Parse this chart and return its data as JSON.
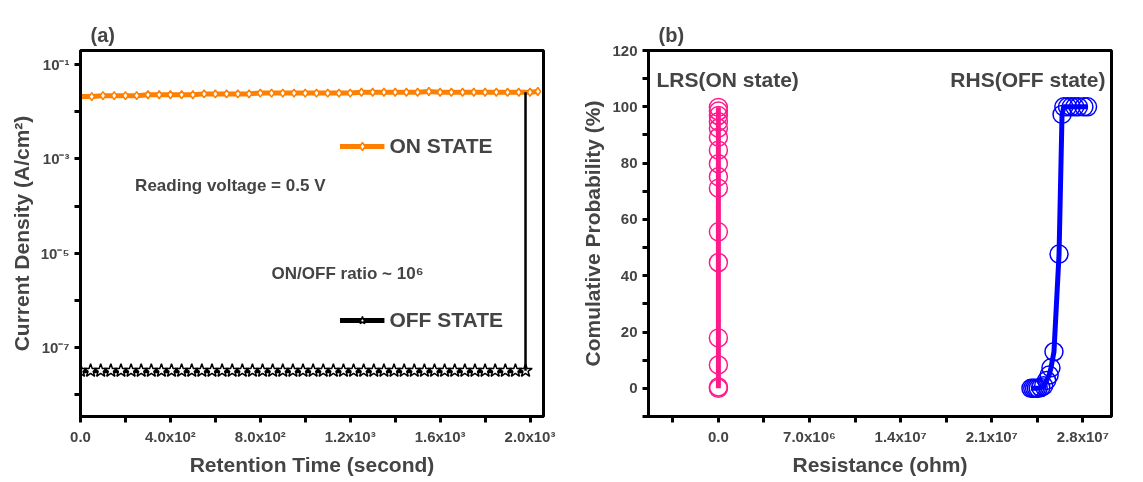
{
  "chart_data": [
    {
      "type": "line",
      "title": "(a)",
      "xlabel": "Retention Time (second)",
      "ylabel": "Current Density (A/cm²)",
      "log": "y",
      "legend": "right",
      "grid": false,
      "xlim": [
        0,
        2060
      ],
      "ylim": [
        3.4e-09,
        0.2
      ],
      "xticks": [
        {
          "value": 0,
          "label": "0.0"
        },
        {
          "value": 200,
          "label": null
        },
        {
          "value": 400,
          "label": "4.0x10²"
        },
        {
          "value": 600,
          "label": null
        },
        {
          "value": 800,
          "label": "8.0x10²"
        },
        {
          "value": 1000,
          "label": null
        },
        {
          "value": 1200,
          "label": "1.2x10³"
        },
        {
          "value": 1400,
          "label": null
        },
        {
          "value": 1600,
          "label": "1.6x10³"
        },
        {
          "value": 1800,
          "label": null
        },
        {
          "value": 2000,
          "label": "2.0x10³"
        }
      ],
      "yticks": [
        {
          "value": 1e-08,
          "label": null
        },
        {
          "value": 1e-07,
          "label": "10⁻⁷"
        },
        {
          "value": 1e-06,
          "label": null
        },
        {
          "value": 1e-05,
          "label": "10⁻⁵"
        },
        {
          "value": 0.0001,
          "label": null
        },
        {
          "value": 0.001,
          "label": "10⁻³"
        },
        {
          "value": 0.01,
          "label": null
        },
        {
          "value": 0.1,
          "label": "10⁻¹"
        }
      ],
      "annotations": [
        "Reading voltage =  0.5 V",
        "ON/OFF  ratio ~ 10⁶"
      ],
      "series": [
        {
          "name": "ON STATE",
          "color": "#ff7f00",
          "marker": "diamond",
          "x": [
            0,
            50,
            100,
            150,
            200,
            250,
            300,
            350,
            400,
            450,
            500,
            550,
            600,
            650,
            700,
            750,
            800,
            850,
            900,
            950,
            1000,
            1050,
            1100,
            1150,
            1200,
            1250,
            1300,
            1350,
            1400,
            1450,
            1500,
            1550,
            1600,
            1650,
            1700,
            1750,
            1800,
            1850,
            1900,
            1950,
            2000,
            2035
          ],
          "values": [
            0.021,
            0.021,
            0.022,
            0.022,
            0.022,
            0.022,
            0.023,
            0.023,
            0.023,
            0.023,
            0.023,
            0.024,
            0.024,
            0.024,
            0.024,
            0.024,
            0.025,
            0.025,
            0.025,
            0.025,
            0.025,
            0.025,
            0.025,
            0.025,
            0.025,
            0.026,
            0.026,
            0.026,
            0.026,
            0.026,
            0.026,
            0.027,
            0.026,
            0.026,
            0.026,
            0.026,
            0.026,
            0.026,
            0.026,
            0.026,
            0.026,
            0.027
          ]
        },
        {
          "name": "OFF STATE",
          "color": "#000000",
          "marker": "star",
          "x": [
            0,
            45,
            90,
            135,
            180,
            225,
            270,
            315,
            360,
            405,
            450,
            495,
            540,
            585,
            630,
            675,
            720,
            765,
            810,
            855,
            900,
            945,
            990,
            1035,
            1080,
            1125,
            1170,
            1215,
            1260,
            1305,
            1350,
            1395,
            1440,
            1485,
            1530,
            1575,
            1620,
            1665,
            1710,
            1755,
            1800,
            1845,
            1890,
            1935,
            1980
          ],
          "values": [
            3.2e-08,
            3.2e-08,
            3.2e-08,
            3.2e-08,
            3.2e-08,
            3.2e-08,
            3.2e-08,
            3.2e-08,
            3.2e-08,
            3.2e-08,
            3.2e-08,
            3.2e-08,
            3.2e-08,
            3.2e-08,
            3.2e-08,
            3.2e-08,
            3.2e-08,
            3.2e-08,
            3.2e-08,
            3.2e-08,
            3.2e-08,
            3.2e-08,
            3.2e-08,
            3.2e-08,
            3.2e-08,
            3.2e-08,
            3.2e-08,
            3.2e-08,
            3.2e-08,
            3.2e-08,
            3.2e-08,
            3.2e-08,
            3.2e-08,
            3.2e-08,
            3.2e-08,
            3.2e-08,
            3.2e-08,
            3.2e-08,
            3.2e-08,
            3.2e-08,
            3.2e-08,
            3.2e-08,
            3.2e-08,
            3.2e-08,
            3.2e-08
          ]
        },
        {
          "color": "#000000",
          "marker": "none",
          "x": [
            1980,
            1980
          ],
          "values": [
            3.2e-08,
            0.026
          ]
        }
      ]
    },
    {
      "type": "line",
      "title": "(b)",
      "xlabel": "Resistance (ohm)",
      "ylabel": "Comulative Probability (%)",
      "grid": false,
      "xlim": [
        -5370000.0,
        30200000.0
      ],
      "ylim": [
        -10,
        120
      ],
      "xticks": [
        {
          "value": -3500000.0,
          "label": null
        },
        {
          "value": 0,
          "label": "0.0"
        },
        {
          "value": 3500000.0,
          "label": null
        },
        {
          "value": 7000000.0,
          "label": "7.0x10⁶"
        },
        {
          "value": 10500000.0,
          "label": null
        },
        {
          "value": 14000000.0,
          "label": "1.4x10⁷"
        },
        {
          "value": 17500000.0,
          "label": null
        },
        {
          "value": 21000000.0,
          "label": "2.1x10⁷"
        },
        {
          "value": 24500000.0,
          "label": null
        },
        {
          "value": 28000000.0,
          "label": "2.8x10⁷"
        }
      ],
      "yticks": [
        {
          "value": -10,
          "label": null
        },
        0,
        {
          "value": 10,
          "label": null
        },
        20,
        {
          "value": 30,
          "label": null
        },
        40,
        {
          "value": 50,
          "label": null
        },
        60,
        {
          "value": 70,
          "label": null
        },
        80,
        {
          "value": 90,
          "label": null
        },
        100,
        {
          "value": 110,
          "label": null
        },
        120
      ],
      "series": [
        {
          "name": "LRS(ON state)",
          "color": "#ff1a8c",
          "marker": "circle",
          "x": [
            0,
            0,
            0,
            0,
            0,
            0,
            0,
            0,
            0,
            0,
            0,
            0,
            0,
            0,
            0,
            0
          ],
          "values": [
            0,
            0.5,
            8.3,
            17.9,
            44.7,
            55.6,
            71.1,
            75.2,
            79.8,
            84.6,
            89.2,
            92.4,
            94.7,
            96.9,
            98.5,
            99.8
          ]
        },
        {
          "name": "RHS(OFF state)",
          "color": "#0000ff",
          "marker": "circle",
          "x": [
            24010000.0,
            24150000.0,
            24290000.0,
            24430000.0,
            24570000.0,
            24770000.0,
            24990000.0,
            25220000.0,
            25410000.0,
            25550000.0,
            25780000.0,
            26170000.0,
            26400000.0,
            26540000.0,
            26820000.0,
            27100000.0,
            27380000.0,
            27660000.0,
            28080000.0,
            28360000.0
          ],
          "values": [
            0,
            0,
            0,
            0,
            0,
            0.3,
            0.9,
            2.8,
            4.7,
            7.3,
            13,
            47.7,
            97.3,
            100,
            100,
            100,
            100,
            100,
            100,
            100
          ]
        }
      ]
    }
  ]
}
